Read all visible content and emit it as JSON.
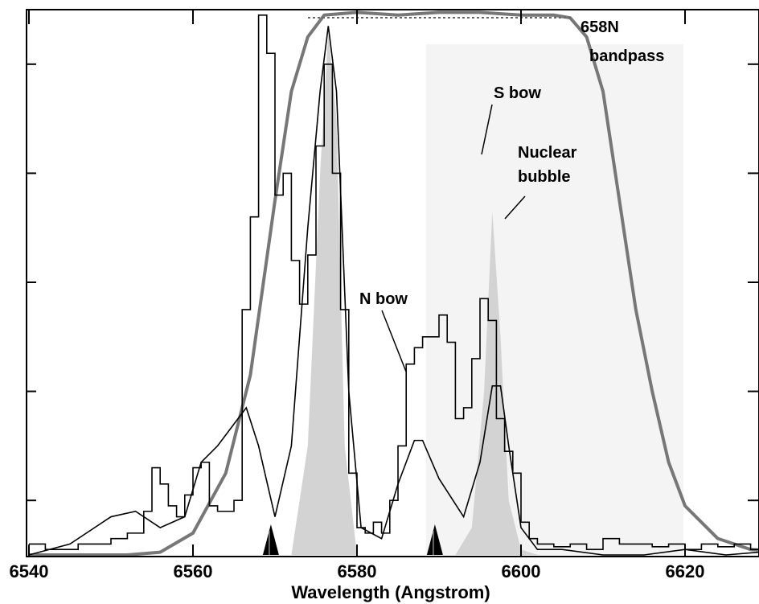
{
  "chart_data": {
    "type": "line",
    "title": "",
    "xlabel": "Wavelength (Angstrom)",
    "ylabel": "",
    "xlim": [
      6540,
      6633
    ],
    "ylim": [
      0,
      1
    ],
    "grid": false,
    "x_ticks": [
      6540,
      6560,
      6580,
      6600,
      6620
    ],
    "x_tick_labels": [
      "6540",
      "6560",
      "6580",
      "6600",
      "6620"
    ],
    "y_ticks": [
      0.1,
      0.3,
      0.5,
      0.7,
      0.9
    ],
    "annotations": [
      {
        "label": "658N",
        "x": 6613,
        "y": 0.95
      },
      {
        "label": "bandpass",
        "x": 6613,
        "y": 0.91
      },
      {
        "label": "S bow",
        "x": 6594,
        "y": 0.81
      },
      {
        "label": "Nuclear",
        "x": 6601,
        "y": 0.74
      },
      {
        "label": "bubble",
        "x": 6601,
        "y": 0.7
      },
      {
        "label": "N bow",
        "x": 6584,
        "y": 0.46
      }
    ],
    "rest_markers": [
      6569.5,
      6589.5
    ],
    "series": [
      {
        "style": "filter-curve",
        "color": "#777777",
        "x": [
          6540,
          6552,
          6556,
          6560,
          6564,
          6567,
          6570,
          6572,
          6574,
          6576,
          6580,
          6585,
          6590,
          6595,
          6600,
          6604,
          6606,
          6608,
          6610,
          6612,
          6614,
          6616,
          6618,
          6620,
          6624,
          6628,
          6633
        ],
        "y": [
          0.0,
          0.0,
          0.005,
          0.04,
          0.15,
          0.33,
          0.65,
          0.85,
          0.95,
          0.99,
          0.995,
          0.99,
          0.995,
          0.995,
          0.99,
          0.99,
          0.985,
          0.95,
          0.85,
          0.65,
          0.45,
          0.3,
          0.17,
          0.09,
          0.03,
          0.01,
          0.005
        ]
      },
      {
        "style": "filled-profile",
        "color": "#d3d3d3",
        "x": [
          6572,
          6574,
          6575.5,
          6576.5,
          6577.5,
          6578.5,
          6580,
          6592,
          6594,
          6595.5,
          6596.5,
          6597.5,
          6598.5,
          6600,
          6602
        ],
        "y": [
          0.0,
          0.2,
          0.7,
          0.96,
          0.8,
          0.2,
          0.0,
          0.0,
          0.05,
          0.3,
          0.63,
          0.4,
          0.1,
          0.01,
          0.0
        ]
      },
      {
        "style": "smooth-line",
        "color": "#000000",
        "x": [
          6540,
          6545,
          6550,
          6553,
          6556,
          6559,
          6561,
          6563,
          6565,
          6566.5,
          6568,
          6570,
          6572,
          6574,
          6575.5,
          6576.5,
          6577.5,
          6579,
          6580.5,
          6583,
          6585,
          6587,
          6588,
          6590,
          6593,
          6595,
          6596.5,
          6597.5,
          6598.5,
          6600,
          6602,
          6605,
          6610,
          6615,
          6620,
          6625,
          6633
        ],
        "y": [
          0.0,
          0.02,
          0.07,
          0.08,
          0.05,
          0.07,
          0.17,
          0.2,
          0.24,
          0.27,
          0.2,
          0.07,
          0.2,
          0.6,
          0.85,
          0.97,
          0.85,
          0.3,
          0.05,
          0.03,
          0.13,
          0.21,
          0.21,
          0.14,
          0.07,
          0.17,
          0.31,
          0.31,
          0.2,
          0.05,
          0.01,
          0.01,
          0.0,
          0.0,
          0.01,
          0.0,
          0.01
        ]
      },
      {
        "style": "step-line",
        "color": "#000000",
        "x": [
          6540,
          6542,
          6544,
          6546,
          6548,
          6550,
          6552,
          6554,
          6555,
          6556,
          6557,
          6558,
          6559,
          6560,
          6561,
          6562,
          6563,
          6564,
          6565,
          6566,
          6567,
          6568,
          6569,
          6570,
          6571,
          6572,
          6573,
          6574,
          6575,
          6576,
          6577,
          6578,
          6579,
          6580,
          6581,
          6582,
          6583,
          6584,
          6585,
          6586,
          6587,
          6588,
          6589,
          6590,
          6591,
          6592,
          6593,
          6594,
          6595,
          6596,
          6597,
          6598,
          6599,
          6600,
          6601,
          6602,
          6604,
          6606,
          6608,
          6610,
          6612,
          6614,
          6616,
          6618,
          6620,
          6622,
          6624,
          6626,
          6628,
          6630,
          6632
        ],
        "y": [
          0.02,
          0.01,
          0.01,
          0.02,
          0.02,
          0.03,
          0.04,
          0.08,
          0.16,
          0.13,
          0.09,
          0.07,
          0.11,
          0.16,
          0.17,
          0.09,
          0.08,
          0.08,
          0.1,
          0.45,
          0.62,
          0.99,
          0.92,
          0.66,
          0.7,
          0.54,
          0.46,
          0.55,
          0.75,
          0.9,
          0.7,
          0.45,
          0.15,
          0.05,
          0.04,
          0.06,
          0.04,
          0.1,
          0.2,
          0.35,
          0.38,
          0.4,
          0.4,
          0.44,
          0.39,
          0.25,
          0.27,
          0.36,
          0.47,
          0.43,
          0.25,
          0.19,
          0.15,
          0.06,
          0.03,
          0.02,
          0.015,
          0.02,
          0.01,
          0.03,
          0.02,
          0.02,
          0.015,
          0.02,
          0.01,
          0.02,
          0.015,
          0.02,
          0.01,
          0.02,
          0.01
        ]
      }
    ]
  }
}
